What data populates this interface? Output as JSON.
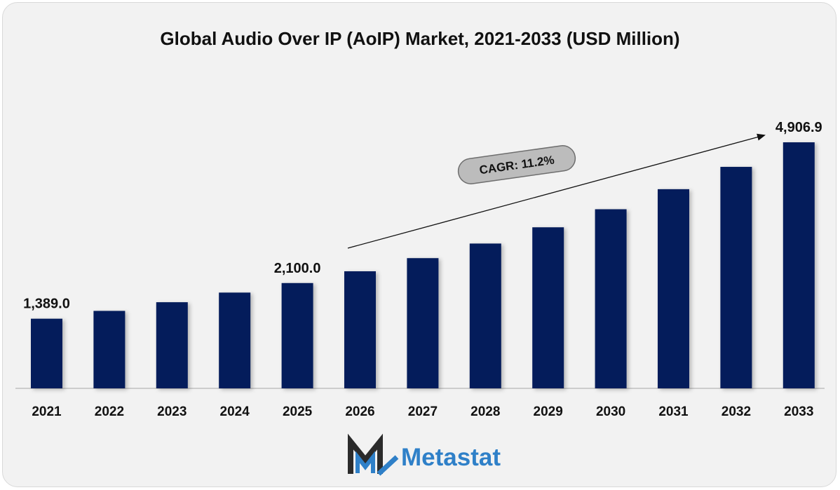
{
  "chart_data": {
    "type": "bar",
    "title": "Global Audio Over IP (AoIP) Market, 2021-2033 (USD Million)",
    "categories": [
      "2021",
      "2022",
      "2023",
      "2024",
      "2025",
      "2026",
      "2027",
      "2028",
      "2029",
      "2030",
      "2031",
      "2032",
      "2033"
    ],
    "values": [
      1389.0,
      1545.0,
      1718.0,
      1910.0,
      2100.0,
      2335.0,
      2597.0,
      2888.0,
      3212.0,
      3572.0,
      3972.0,
      4417.0,
      4906.9
    ],
    "data_labels": [
      {
        "index": 0,
        "text": "1,389.0"
      },
      {
        "index": 4,
        "text": "2,100.0"
      },
      {
        "index": 12,
        "text": "4,906.9"
      }
    ],
    "annotation": "CAGR: 11.2%",
    "xlabel": "",
    "ylabel": "",
    "ylim": [
      0,
      4906.9
    ],
    "grid": false,
    "bar_color": "#041c5b"
  },
  "brand": {
    "name": "Metastat",
    "color": "#2f80c8",
    "mark_color": "#2b2b2b"
  }
}
